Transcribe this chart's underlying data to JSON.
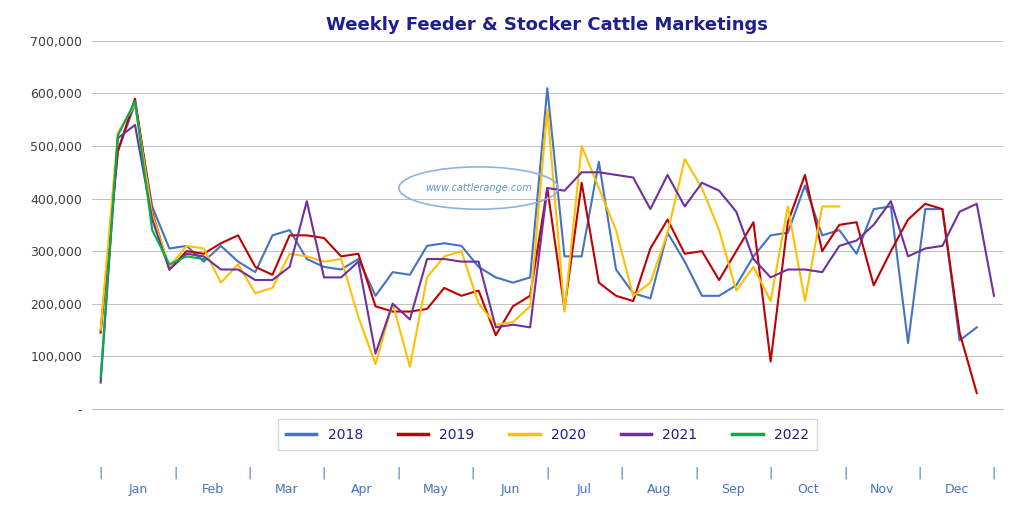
{
  "title": "Weekly Feeder & Stocker Cattle Marketings",
  "title_color": "#1F1F8F",
  "background_color": "#FFFFFF",
  "plot_bg_color": "#FFFFFF",
  "grid_color": "#C0C0C0",
  "watermark": "www.cattlerange.com",
  "ylim": [
    0,
    700000
  ],
  "yticks": [
    0,
    100000,
    200000,
    300000,
    400000,
    500000,
    600000,
    700000
  ],
  "legend_labels": [
    "2018",
    "2019",
    "2020",
    "2021",
    "2022"
  ],
  "legend_colors": [
    "#4472C4",
    "#C00000",
    "#FFC000",
    "#7030A0",
    "#00B050"
  ],
  "month_labels": [
    "Jan",
    "Feb",
    "Mar",
    "Apr",
    "May",
    "Jun",
    "Jul",
    "Aug",
    "Sep",
    "Oct",
    "Nov",
    "Dec"
  ],
  "month_boundaries": [
    0,
    4.33,
    8.67,
    13.0,
    17.33,
    21.67,
    26.0,
    30.33,
    34.67,
    39.0,
    43.33,
    47.67,
    52.0
  ],
  "xlim": [
    -0.5,
    52.5
  ],
  "axis_label_color": "#4472C4",
  "series": {
    "2018": [
      150000,
      490000,
      580000,
      385000,
      305000,
      310000,
      280000,
      310000,
      280000,
      260000,
      330000,
      340000,
      285000,
      270000,
      265000,
      285000,
      215000,
      260000,
      255000,
      310000,
      315000,
      310000,
      270000,
      250000,
      240000,
      250000,
      610000,
      290000,
      290000,
      470000,
      265000,
      220000,
      210000,
      335000,
      280000,
      215000,
      215000,
      235000,
      290000,
      330000,
      335000,
      425000,
      330000,
      340000,
      295000,
      380000,
      385000,
      125000,
      380000,
      380000,
      130000,
      155000,
      null
    ],
    "2019": [
      145000,
      490000,
      590000,
      375000,
      265000,
      300000,
      295000,
      315000,
      330000,
      270000,
      255000,
      330000,
      330000,
      325000,
      290000,
      295000,
      195000,
      185000,
      185000,
      190000,
      230000,
      215000,
      225000,
      140000,
      195000,
      215000,
      420000,
      190000,
      430000,
      240000,
      215000,
      205000,
      305000,
      360000,
      295000,
      300000,
      245000,
      300000,
      355000,
      90000,
      355000,
      445000,
      300000,
      350000,
      355000,
      235000,
      300000,
      360000,
      390000,
      380000,
      145000,
      30000,
      null
    ],
    "2020": [
      150000,
      525000,
      580000,
      370000,
      270000,
      310000,
      305000,
      240000,
      275000,
      220000,
      230000,
      295000,
      290000,
      280000,
      285000,
      175000,
      85000,
      200000,
      80000,
      250000,
      290000,
      300000,
      200000,
      160000,
      165000,
      195000,
      570000,
      185000,
      500000,
      420000,
      340000,
      215000,
      240000,
      335000,
      475000,
      420000,
      340000,
      225000,
      270000,
      205000,
      385000,
      205000,
      385000,
      385000,
      null,
      null,
      null,
      null,
      null,
      null,
      null,
      null,
      null
    ],
    "2021": [
      50000,
      515000,
      540000,
      360000,
      265000,
      295000,
      290000,
      265000,
      265000,
      245000,
      245000,
      270000,
      395000,
      250000,
      250000,
      280000,
      105000,
      200000,
      170000,
      285000,
      285000,
      280000,
      280000,
      155000,
      160000,
      155000,
      420000,
      415000,
      450000,
      450000,
      445000,
      440000,
      380000,
      445000,
      385000,
      430000,
      415000,
      375000,
      285000,
      250000,
      265000,
      265000,
      260000,
      310000,
      320000,
      350000,
      395000,
      290000,
      305000,
      310000,
      375000,
      390000,
      215000
    ],
    "2022": [
      60000,
      520000,
      585000,
      340000,
      275000,
      290000,
      285000,
      null,
      null,
      null,
      null,
      null,
      null,
      null,
      null,
      null,
      null,
      null,
      null,
      null,
      null,
      null,
      null,
      null,
      null,
      null,
      null,
      null,
      null,
      null,
      null,
      null,
      null,
      null,
      null,
      null,
      null,
      null,
      null,
      null,
      null,
      null,
      null,
      null,
      null,
      null,
      null,
      null,
      null,
      null,
      null,
      null,
      null
    ]
  }
}
